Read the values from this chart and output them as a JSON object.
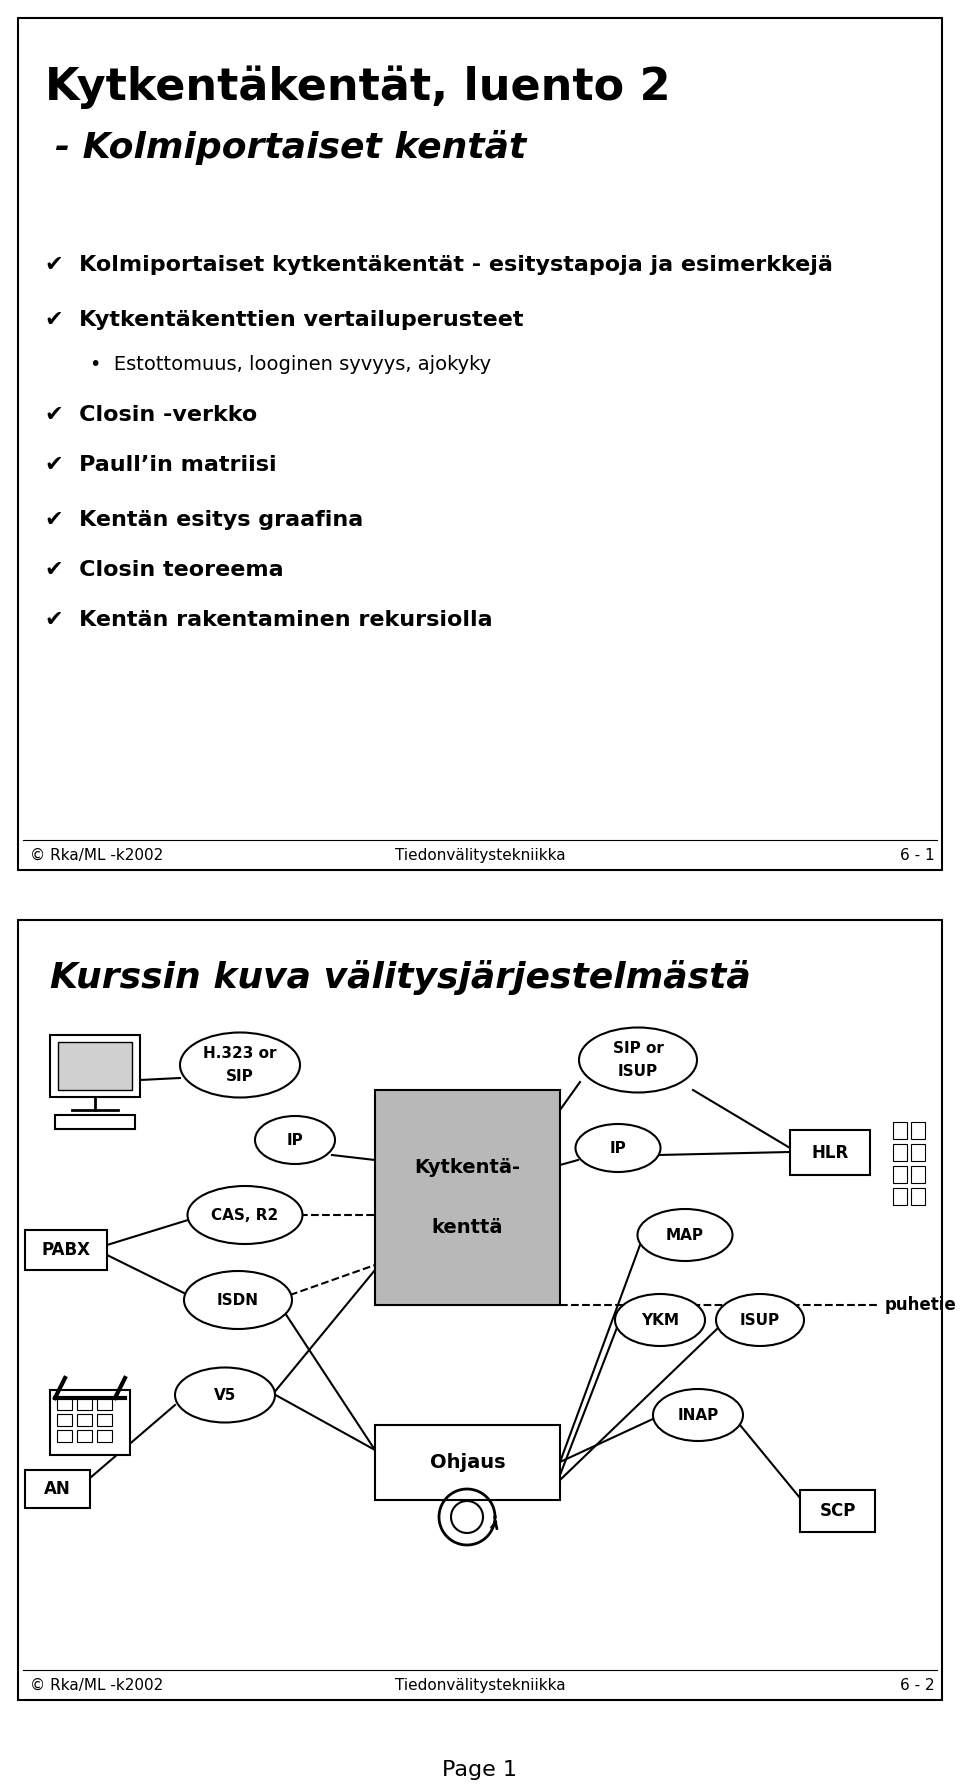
{
  "slide1": {
    "title_line1": "Kytkentäkentät, luento 2",
    "title_line2": "- Kolmiportaiset kentät",
    "bullets": [
      {
        "level": 1,
        "text": "Kolmiportaiset kytkentäkentät - esitystapoja ja esimerkkejä"
      },
      {
        "level": 1,
        "text": "Kytkentäkenttien vertailuperusteet"
      },
      {
        "level": 2,
        "text": "Estottomuus, looginen syvyys, ajokyky"
      },
      {
        "level": 1,
        "text": "Closin -verkko"
      },
      {
        "level": 1,
        "text": "Paull’in matriisi"
      },
      {
        "level": 1,
        "text": "Kentän esitys graafina"
      },
      {
        "level": 1,
        "text": "Closin teoreema"
      },
      {
        "level": 1,
        "text": "Kentän rakentaminen rekursiolla"
      }
    ],
    "footer_left": "© Rka/ML -k2002",
    "footer_center": "Tiedonvälitystekniikka",
    "footer_right": "6 - 1"
  },
  "slide2": {
    "title": "Kurssin kuva välitysjärjestelmästä",
    "footer_left": "© Rka/ML -k2002",
    "footer_center": "Tiedonvälitystekniikka",
    "footer_right": "6 - 2"
  },
  "page_label": "Page 1",
  "bg_color": "#ffffff"
}
